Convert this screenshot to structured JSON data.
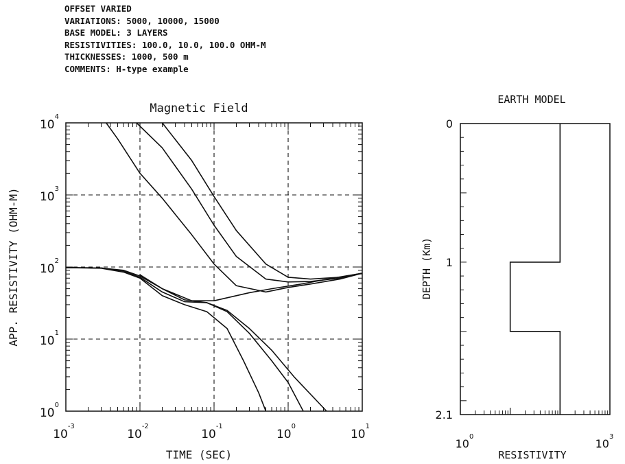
{
  "header": {
    "lines": [
      "OFFSET VARIED",
      "VARIATIONS: 5000, 10000, 15000",
      "BASE MODEL: 3 LAYERS",
      "RESISTIVITIES: 100.0, 10.0, 100.0 OHM-M",
      "THICKNESSES: 1000, 500 m",
      "COMMENTS: H-type example"
    ]
  },
  "chart_data": [
    {
      "type": "line",
      "title": "Magnetic Field",
      "xlabel": "TIME (SEC)",
      "ylabel": "APP. RESISTIVITY (OHM-M)",
      "x_scale": "log",
      "y_scale": "log",
      "xlim": [
        0.001,
        10
      ],
      "ylim": [
        1,
        10000
      ],
      "grid": "dashed at decades",
      "x_ticks": [
        {
          "base": "10",
          "exp": "-3"
        },
        {
          "base": "10",
          "exp": "-2"
        },
        {
          "base": "10",
          "exp": "-1"
        },
        {
          "base": "10",
          "exp": "0"
        },
        {
          "base": "10",
          "exp": "1"
        }
      ],
      "y_ticks": [
        {
          "base": "10",
          "exp": "0"
        },
        {
          "base": "10",
          "exp": "1"
        },
        {
          "base": "10",
          "exp": "2"
        },
        {
          "base": "10",
          "exp": "3"
        },
        {
          "base": "10",
          "exp": "4"
        }
      ],
      "series": [
        {
          "x": [
            0.001,
            0.003,
            0.006,
            0.01,
            0.02,
            0.04,
            0.08,
            0.15,
            0.3,
            0.6,
            1.2,
            3.3
          ],
          "y": [
            98,
            97,
            90,
            75,
            50,
            35,
            32,
            25,
            14,
            7,
            3,
            1
          ]
        },
        {
          "x": [
            0.001,
            0.003,
            0.006,
            0.01,
            0.02,
            0.04,
            0.08,
            0.15,
            0.3,
            0.6,
            1.0,
            1.6
          ],
          "y": [
            98,
            97,
            88,
            72,
            45,
            33,
            32,
            24,
            12,
            5,
            2.5,
            1
          ]
        },
        {
          "x": [
            0.001,
            0.003,
            0.006,
            0.01,
            0.02,
            0.04,
            0.08,
            0.15,
            0.25,
            0.4,
            0.5
          ],
          "y": [
            98,
            96,
            85,
            70,
            40,
            30,
            24,
            14,
            5,
            1.8,
            1
          ]
        },
        {
          "x": [
            0.0035,
            0.005,
            0.01,
            0.02,
            0.05,
            0.1,
            0.2,
            0.5,
            1,
            2,
            5,
            10
          ],
          "y": [
            10000,
            6000,
            2000,
            900,
            280,
            110,
            55,
            45,
            52,
            58,
            68,
            82
          ]
        },
        {
          "x": [
            0.009,
            0.02,
            0.05,
            0.1,
            0.2,
            0.5,
            1,
            2,
            5,
            10
          ],
          "y": [
            10000,
            4500,
            1200,
            380,
            140,
            68,
            62,
            63,
            70,
            82
          ]
        },
        {
          "x": [
            0.02,
            0.05,
            0.1,
            0.2,
            0.5,
            1,
            2,
            5,
            10
          ],
          "y": [
            10000,
            3000,
            950,
            320,
            110,
            72,
            68,
            72,
            82
          ]
        },
        {
          "x": [
            0.01,
            0.02,
            0.05,
            0.1,
            0.3,
            0.6,
            1.5,
            4,
            10
          ],
          "y": [
            78,
            50,
            34,
            34,
            44,
            50,
            58,
            70,
            82
          ]
        }
      ]
    },
    {
      "type": "line",
      "title": "EARTH MODEL",
      "xlabel": "RESISTIVITY",
      "ylabel": "DEPTH (Km)",
      "x_scale": "log",
      "xlim": [
        1,
        1000
      ],
      "ylim": [
        0,
        2.1
      ],
      "x_ticks": [
        {
          "base": "10",
          "exp": "0"
        },
        {
          "base": "10",
          "exp": "3"
        }
      ],
      "y_ticks": [
        "0",
        "1",
        "2.1"
      ],
      "series": [
        {
          "x": [
            100,
            100,
            10,
            10,
            100,
            100
          ],
          "y": [
            0,
            1.0,
            1.0,
            1.5,
            1.5,
            2.1
          ]
        }
      ]
    }
  ]
}
